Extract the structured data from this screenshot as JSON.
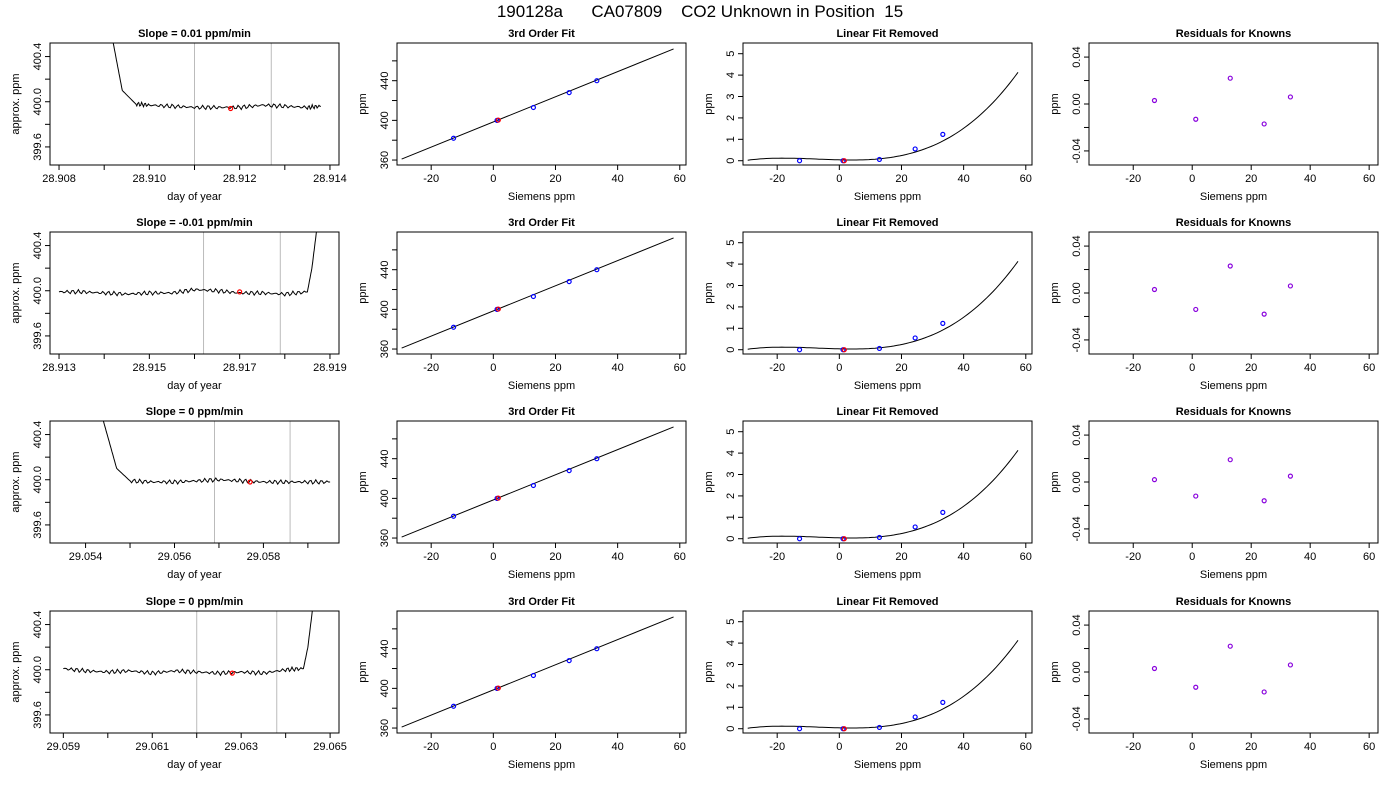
{
  "title": "190128a      CA07809    CO2 Unknown in Position  15",
  "colors": {
    "line": "#000000",
    "known_points": "#0000ff",
    "unknown_point": "#ff0000",
    "residual_points": "#8800dd",
    "marker_lines": "#bbbbbb"
  },
  "chart_data": [
    {
      "type": "line",
      "row": 1,
      "title": "Slope =  0.01  ppm/min",
      "xlabel": "day of year",
      "ylabel": "approx. ppm",
      "xlim": [
        28.9078,
        28.9142
      ],
      "ylim": [
        399.44,
        400.52
      ],
      "xticks": [
        28.908,
        28.909,
        28.91,
        28.911,
        28.912,
        28.913,
        28.914
      ],
      "xtick_labels": [
        "28.908",
        "",
        "28.910",
        "",
        "28.912",
        "",
        "28.914"
      ],
      "yticks": [
        399.6,
        399.8,
        400,
        400.2,
        400.4
      ],
      "ytick_labels": [
        "399.6",
        "",
        "400.0",
        "",
        "400.4"
      ],
      "markers": [
        28.911,
        28.9127
      ],
      "highlight": {
        "x": 28.9118,
        "y": 399.94
      },
      "series": [
        {
          "x": [
            28.9092,
            28.9094,
            28.9097,
            28.91,
            28.9105,
            28.911,
            28.9115,
            28.912,
            28.9125,
            28.913,
            28.9135,
            28.9138
          ],
          "y": [
            400.52,
            400.1,
            399.98,
            399.97,
            399.96,
            399.95,
            399.95,
            399.95,
            399.97,
            399.96,
            399.95,
            399.96
          ]
        }
      ]
    },
    {
      "type": "scatter_line",
      "row": 1,
      "title": "3rd Order Fit",
      "xlabel": "Siemens ppm",
      "ylabel": "ppm",
      "xlim": [
        -31,
        62
      ],
      "ylim": [
        355,
        478
      ],
      "xticks": [
        -20,
        0,
        20,
        40,
        60
      ],
      "xtick_labels": [
        "-20",
        "0",
        "20",
        "40",
        "60"
      ],
      "yticks": [
        360,
        380,
        400,
        420,
        440,
        460
      ],
      "ytick_labels": [
        "360",
        "",
        "400",
        "",
        "440",
        ""
      ],
      "line": {
        "x": [
          -29.5,
          58
        ],
        "y": [
          361,
          472
        ]
      },
      "known": {
        "x": [
          -12.8,
          1.2,
          12.9,
          24.4,
          33.3
        ],
        "y": [
          382,
          400,
          413,
          428,
          440
        ]
      },
      "unknown": {
        "x": [
          1.6
        ],
        "y": [
          400.3
        ]
      }
    },
    {
      "type": "scatter_line",
      "row": 1,
      "title": "Linear Fit Removed",
      "xlabel": "Siemens ppm",
      "ylabel": "ppm",
      "xlim": [
        -31,
        62
      ],
      "ylim": [
        -0.2,
        5.5
      ],
      "xticks": [
        -20,
        0,
        20,
        40,
        60
      ],
      "xtick_labels": [
        "-20",
        "0",
        "20",
        "40",
        "60"
      ],
      "yticks": [
        0,
        1,
        2,
        3,
        4,
        5
      ],
      "ytick_labels": [
        "0",
        "1",
        "2",
        "3",
        "4",
        "5"
      ],
      "curve": "cubic",
      "known": {
        "x": [
          -12.8,
          1.2,
          12.9,
          24.4,
          33.3
        ],
        "y": [
          0.0,
          0.0,
          0.06,
          0.55,
          1.23
        ]
      },
      "unknown": {
        "x": [
          1.6
        ],
        "y": [
          0.0
        ]
      }
    },
    {
      "type": "scatter",
      "row": 1,
      "title": "Residuals for Knowns",
      "xlabel": "Siemens ppm",
      "ylabel": "ppm",
      "xlim": [
        -35,
        63
      ],
      "ylim": [
        -0.052,
        0.052
      ],
      "xticks": [
        -20,
        0,
        20,
        40,
        60
      ],
      "xtick_labels": [
        "-20",
        "0",
        "20",
        "40",
        "60"
      ],
      "yticks": [
        -0.04,
        -0.02,
        0,
        0.02,
        0.04
      ],
      "ytick_labels": [
        "-0.04",
        "",
        "0.00",
        "",
        "0.04"
      ],
      "points": {
        "x": [
          -12.8,
          1.2,
          12.9,
          24.4,
          33.3
        ],
        "y": [
          0.003,
          -0.013,
          0.022,
          -0.017,
          0.006
        ]
      }
    },
    {
      "type": "line",
      "row": 2,
      "title": "Slope =  -0.01  ppm/min",
      "xlabel": "day of year",
      "ylabel": "approx. ppm",
      "xlim": [
        28.9128,
        28.9192
      ],
      "ylim": [
        399.44,
        400.52
      ],
      "xticks": [
        28.913,
        28.914,
        28.915,
        28.916,
        28.917,
        28.918,
        28.919
      ],
      "xtick_labels": [
        "28.913",
        "",
        "28.915",
        "",
        "28.917",
        "",
        "28.919"
      ],
      "yticks": [
        399.6,
        399.8,
        400,
        400.2,
        400.4
      ],
      "ytick_labels": [
        "399.6",
        "",
        "400.0",
        "",
        "400.4"
      ],
      "markers": [
        28.9162,
        28.9179
      ],
      "highlight": {
        "x": 28.917,
        "y": 399.99
      },
      "series": [
        {
          "x": [
            28.913,
            28.9135,
            28.914,
            28.9145,
            28.915,
            28.9155,
            28.916,
            28.9165,
            28.917,
            28.9175,
            28.918,
            28.9185,
            28.9186,
            28.9187
          ],
          "y": [
            399.99,
            399.99,
            399.98,
            399.97,
            399.98,
            399.98,
            400.01,
            400.0,
            399.98,
            399.98,
            399.97,
            399.99,
            400.2,
            400.52
          ]
        }
      ]
    },
    {
      "type": "scatter_line",
      "row": 2,
      "title": "3rd Order Fit",
      "xlabel": "Siemens ppm",
      "ylabel": "ppm",
      "xlim": [
        -31,
        62
      ],
      "ylim": [
        355,
        478
      ],
      "xticks": [
        -20,
        0,
        20,
        40,
        60
      ],
      "xtick_labels": [
        "-20",
        "0",
        "20",
        "40",
        "60"
      ],
      "yticks": [
        360,
        380,
        400,
        420,
        440,
        460
      ],
      "ytick_labels": [
        "360",
        "",
        "400",
        "",
        "440",
        ""
      ],
      "line": {
        "x": [
          -29.5,
          58
        ],
        "y": [
          361,
          472
        ]
      },
      "known": {
        "x": [
          -12.8,
          1.2,
          12.9,
          24.4,
          33.3
        ],
        "y": [
          382,
          400,
          413,
          428,
          440
        ]
      },
      "unknown": {
        "x": [
          1.6
        ],
        "y": [
          400.3
        ]
      }
    },
    {
      "type": "scatter_line",
      "row": 2,
      "title": "Linear Fit Removed",
      "xlabel": "Siemens ppm",
      "ylabel": "ppm",
      "xlim": [
        -31,
        62
      ],
      "ylim": [
        -0.2,
        5.5
      ],
      "xticks": [
        -20,
        0,
        20,
        40,
        60
      ],
      "xtick_labels": [
        "-20",
        "0",
        "20",
        "40",
        "60"
      ],
      "yticks": [
        0,
        1,
        2,
        3,
        4,
        5
      ],
      "ytick_labels": [
        "0",
        "1",
        "2",
        "3",
        "4",
        "5"
      ],
      "curve": "cubic",
      "known": {
        "x": [
          -12.8,
          1.2,
          12.9,
          24.4,
          33.3
        ],
        "y": [
          0.0,
          0.0,
          0.06,
          0.55,
          1.23
        ]
      },
      "unknown": {
        "x": [
          1.6
        ],
        "y": [
          0.0
        ]
      }
    },
    {
      "type": "scatter",
      "row": 2,
      "title": "Residuals for Knowns",
      "xlabel": "Siemens ppm",
      "ylabel": "ppm",
      "xlim": [
        -35,
        63
      ],
      "ylim": [
        -0.052,
        0.052
      ],
      "xticks": [
        -20,
        0,
        20,
        40,
        60
      ],
      "xtick_labels": [
        "-20",
        "0",
        "20",
        "40",
        "60"
      ],
      "yticks": [
        -0.04,
        -0.02,
        0,
        0.02,
        0.04
      ],
      "ytick_labels": [
        "-0.04",
        "",
        "0.00",
        "",
        "0.04"
      ],
      "points": {
        "x": [
          -12.8,
          1.2,
          12.9,
          24.4,
          33.3
        ],
        "y": [
          0.003,
          -0.014,
          0.023,
          -0.018,
          0.006
        ]
      }
    },
    {
      "type": "line",
      "row": 3,
      "title": "Slope =  0  ppm/min",
      "xlabel": "day of year",
      "ylabel": "approx. ppm",
      "xlim": [
        29.0532,
        29.0597
      ],
      "ylim": [
        399.44,
        400.52
      ],
      "xticks": [
        29.054,
        29.055,
        29.056,
        29.057,
        29.058,
        29.059
      ],
      "xtick_labels": [
        "29.054",
        "",
        "29.056",
        "",
        "29.058",
        ""
      ],
      "yticks": [
        399.6,
        399.8,
        400,
        400.2,
        400.4
      ],
      "ytick_labels": [
        "399.6",
        "",
        "400.0",
        "",
        "400.4"
      ],
      "markers": [
        29.0569,
        29.0586
      ],
      "highlight": {
        "x": 29.0577,
        "y": 399.98
      },
      "series": [
        {
          "x": [
            29.0544,
            29.0547,
            29.055,
            29.0555,
            29.056,
            29.0565,
            29.057,
            29.0575,
            29.058,
            29.0585,
            29.059,
            29.0595
          ],
          "y": [
            400.52,
            400.1,
            399.99,
            399.98,
            399.98,
            399.99,
            400.0,
            399.99,
            399.98,
            399.98,
            399.98,
            399.98
          ]
        }
      ]
    },
    {
      "type": "scatter_line",
      "row": 3,
      "title": "3rd Order Fit",
      "xlabel": "Siemens ppm",
      "ylabel": "ppm",
      "xlim": [
        -31,
        62
      ],
      "ylim": [
        355,
        478
      ],
      "xticks": [
        -20,
        0,
        20,
        40,
        60
      ],
      "xtick_labels": [
        "-20",
        "0",
        "20",
        "40",
        "60"
      ],
      "yticks": [
        360,
        380,
        400,
        420,
        440,
        460
      ],
      "ytick_labels": [
        "360",
        "",
        "400",
        "",
        "440",
        ""
      ],
      "line": {
        "x": [
          -29.5,
          58
        ],
        "y": [
          361,
          472
        ]
      },
      "known": {
        "x": [
          -12.8,
          1.2,
          12.9,
          24.4,
          33.3
        ],
        "y": [
          382,
          400,
          413,
          428,
          440
        ]
      },
      "unknown": {
        "x": [
          1.6
        ],
        "y": [
          400.3
        ]
      }
    },
    {
      "type": "scatter_line",
      "row": 3,
      "title": "Linear Fit Removed",
      "xlabel": "Siemens ppm",
      "ylabel": "ppm",
      "xlim": [
        -31,
        62
      ],
      "ylim": [
        -0.2,
        5.5
      ],
      "xticks": [
        -20,
        0,
        20,
        40,
        60
      ],
      "xtick_labels": [
        "-20",
        "0",
        "20",
        "40",
        "60"
      ],
      "yticks": [
        0,
        1,
        2,
        3,
        4,
        5
      ],
      "ytick_labels": [
        "0",
        "1",
        "2",
        "3",
        "4",
        "5"
      ],
      "curve": "cubic",
      "known": {
        "x": [
          -12.8,
          1.2,
          12.9,
          24.4,
          33.3
        ],
        "y": [
          0.0,
          0.0,
          0.06,
          0.55,
          1.23
        ]
      },
      "unknown": {
        "x": [
          1.6
        ],
        "y": [
          0.0
        ]
      }
    },
    {
      "type": "scatter",
      "row": 3,
      "title": "Residuals for Knowns",
      "xlabel": "Siemens ppm",
      "ylabel": "ppm",
      "xlim": [
        -35,
        63
      ],
      "ylim": [
        -0.052,
        0.052
      ],
      "xticks": [
        -20,
        0,
        20,
        40,
        60
      ],
      "xtick_labels": [
        "-20",
        "0",
        "20",
        "40",
        "60"
      ],
      "yticks": [
        -0.04,
        -0.02,
        0,
        0.02,
        0.04
      ],
      "ytick_labels": [
        "-0.04",
        "",
        "0.00",
        "",
        "0.04"
      ],
      "points": {
        "x": [
          -12.8,
          1.2,
          12.9,
          24.4,
          33.3
        ],
        "y": [
          0.002,
          -0.012,
          0.019,
          -0.016,
          0.005
        ]
      }
    },
    {
      "type": "line",
      "row": 4,
      "title": "Slope =  0  ppm/min",
      "xlabel": "day of year",
      "ylabel": "approx. ppm",
      "xlim": [
        29.0587,
        29.0652
      ],
      "ylim": [
        399.44,
        400.52
      ],
      "xticks": [
        29.059,
        29.06,
        29.061,
        29.062,
        29.063,
        29.064,
        29.065
      ],
      "xtick_labels": [
        "29.059",
        "",
        "29.061",
        "",
        "29.063",
        "",
        "29.065"
      ],
      "yticks": [
        399.6,
        399.8,
        400,
        400.2,
        400.4
      ],
      "ytick_labels": [
        "399.6",
        "",
        "400.0",
        "",
        "400.4"
      ],
      "markers": [
        29.062,
        29.0638
      ],
      "highlight": {
        "x": 29.0628,
        "y": 399.97
      },
      "series": [
        {
          "x": [
            29.059,
            29.0595,
            29.06,
            29.0605,
            29.061,
            29.0615,
            29.062,
            29.0625,
            29.063,
            29.0635,
            29.064,
            29.0644,
            29.0645,
            29.0646
          ],
          "y": [
            400.01,
            399.99,
            399.98,
            399.99,
            399.97,
            399.99,
            399.98,
            399.97,
            399.98,
            399.97,
            400.0,
            400.01,
            400.2,
            400.52
          ]
        }
      ]
    },
    {
      "type": "scatter_line",
      "row": 4,
      "title": "3rd Order Fit",
      "xlabel": "Siemens ppm",
      "ylabel": "ppm",
      "xlim": [
        -31,
        62
      ],
      "ylim": [
        355,
        478
      ],
      "xticks": [
        -20,
        0,
        20,
        40,
        60
      ],
      "xtick_labels": [
        "-20",
        "0",
        "20",
        "40",
        "60"
      ],
      "yticks": [
        360,
        380,
        400,
        420,
        440,
        460
      ],
      "ytick_labels": [
        "360",
        "",
        "400",
        "",
        "440",
        ""
      ],
      "line": {
        "x": [
          -29.5,
          58
        ],
        "y": [
          361,
          472
        ]
      },
      "known": {
        "x": [
          -12.8,
          1.2,
          12.9,
          24.4,
          33.3
        ],
        "y": [
          382,
          400,
          413,
          428,
          440
        ]
      },
      "unknown": {
        "x": [
          1.6
        ],
        "y": [
          400.3
        ]
      }
    },
    {
      "type": "scatter_line",
      "row": 4,
      "title": "Linear Fit Removed",
      "xlabel": "Siemens ppm",
      "ylabel": "ppm",
      "xlim": [
        -31,
        62
      ],
      "ylim": [
        -0.2,
        5.5
      ],
      "xticks": [
        -20,
        0,
        20,
        40,
        60
      ],
      "xtick_labels": [
        "-20",
        "0",
        "20",
        "40",
        "60"
      ],
      "yticks": [
        0,
        1,
        2,
        3,
        4,
        5
      ],
      "ytick_labels": [
        "0",
        "1",
        "2",
        "3",
        "4",
        "5"
      ],
      "curve": "cubic",
      "known": {
        "x": [
          -12.8,
          1.2,
          12.9,
          24.4,
          33.3
        ],
        "y": [
          0.0,
          0.0,
          0.06,
          0.55,
          1.23
        ]
      },
      "unknown": {
        "x": [
          1.6
        ],
        "y": [
          0.0
        ]
      }
    },
    {
      "type": "scatter",
      "row": 4,
      "title": "Residuals for Knowns",
      "xlabel": "Siemens ppm",
      "ylabel": "ppm",
      "xlim": [
        -35,
        63
      ],
      "ylim": [
        -0.052,
        0.052
      ],
      "xticks": [
        -20,
        0,
        20,
        40,
        60
      ],
      "xtick_labels": [
        "-20",
        "0",
        "20",
        "40",
        "60"
      ],
      "yticks": [
        -0.04,
        -0.02,
        0,
        0.02,
        0.04
      ],
      "ytick_labels": [
        "-0.04",
        "",
        "0.00",
        "",
        "0.04"
      ],
      "points": {
        "x": [
          -12.8,
          1.2,
          12.9,
          24.4,
          33.3
        ],
        "y": [
          0.003,
          -0.013,
          0.022,
          -0.017,
          0.006
        ]
      }
    }
  ]
}
